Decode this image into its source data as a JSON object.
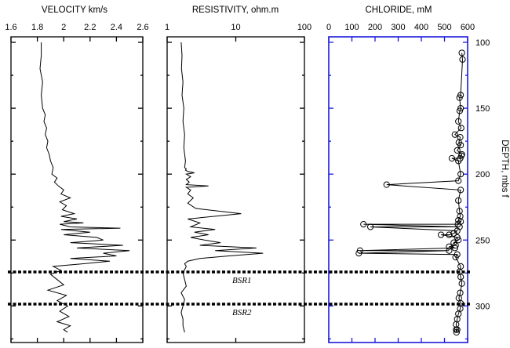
{
  "chart_data": [
    {
      "type": "line",
      "title": "VELOCITY km/s",
      "xlim": [
        1.6,
        2.6
      ],
      "xticks": [
        "1.6",
        "1.8",
        "2",
        "2.2",
        "2.4",
        "2.6"
      ],
      "ylim": [
        100,
        320
      ],
      "series": [
        {
          "x": [
            1.83,
            1.83,
            1.82,
            1.84,
            1.83,
            1.84,
            1.86,
            1.85,
            1.87,
            1.86,
            1.88,
            1.87,
            1.89,
            1.9,
            1.92,
            1.91,
            1.95,
            1.93,
            1.96,
            2.0,
            1.98,
            2.05,
            1.97,
            2.02,
            1.99,
            2.08,
            1.98,
            2.1,
            2.0,
            2.15,
            1.97,
            2.05,
            2.43,
            1.98,
            2.2,
            2.0,
            2.25,
            2.3,
            2.05,
            2.45,
            2.1,
            2.5,
            2.3,
            2.4,
            2.05,
            2.35,
            2.15,
            1.92,
            1.98,
            1.9,
            1.95,
            2.0,
            1.88,
            2.02,
            1.95,
            2.03,
            1.97,
            2.04,
            1.95,
            2.05,
            2.0,
            2.03
          ],
          "y": [
            100,
            110,
            120,
            130,
            140,
            150,
            155,
            160,
            165,
            170,
            175,
            180,
            185,
            190,
            195,
            200,
            203,
            206,
            209,
            212,
            215,
            218,
            221,
            224,
            227,
            230,
            232,
            234,
            236,
            237,
            238,
            240,
            241,
            242,
            244,
            246,
            248,
            250,
            252,
            254,
            256,
            258,
            260,
            262,
            264,
            266,
            268,
            270,
            273,
            276,
            280,
            284,
            288,
            292,
            296,
            300,
            304,
            308,
            312,
            315,
            318,
            320
          ]
        }
      ],
      "annotations": [
        "BSR1",
        "BSR2"
      ]
    },
    {
      "type": "line",
      "title": "RESISTIVITY, ohm.m",
      "xscale": "log",
      "xlim": [
        1,
        100
      ],
      "xticks": [
        "1",
        "10",
        "100"
      ],
      "ylim": [
        100,
        320
      ],
      "series": [
        {
          "x": [
            1.6,
            1.65,
            1.62,
            1.7,
            1.65,
            1.75,
            1.7,
            1.8,
            1.75,
            1.85,
            1.8,
            1.9,
            1.85,
            2.0,
            2.5,
            1.9,
            2.2,
            1.9,
            2.1,
            1.9,
            4.0,
            1.9,
            2.2,
            2.0,
            2.4,
            2.0,
            2.6,
            12.0,
            2.0,
            3.0,
            2.2,
            5.0,
            2.5,
            4.0,
            2.2,
            3.5,
            6.0,
            3.0,
            20.0,
            5.0,
            25.0,
            8.0,
            3.0,
            2.0,
            1.8,
            1.9,
            1.7,
            1.8,
            1.9,
            1.6,
            1.8,
            1.7,
            1.6,
            1.7,
            1.7,
            1.8
          ],
          "y": [
            100,
            110,
            120,
            130,
            140,
            150,
            160,
            170,
            180,
            190,
            195,
            196,
            197,
            198,
            199,
            200,
            202,
            204,
            206,
            208,
            209,
            210,
            212,
            215,
            218,
            222,
            226,
            230,
            234,
            237,
            240,
            242,
            244,
            246,
            248,
            250,
            252,
            254,
            256,
            258,
            260,
            262,
            264,
            266,
            268,
            270,
            275,
            280,
            285,
            290,
            295,
            300,
            305,
            310,
            315,
            320
          ]
        }
      ]
    },
    {
      "type": "scatter",
      "title": "CHLORIDE, mM",
      "xlim": [
        0,
        600
      ],
      "xticks": [
        "0",
        "100",
        "200",
        "300",
        "400",
        "500",
        "600"
      ],
      "ylabel": "DEPTH, mbs f",
      "ylim": [
        100,
        320
      ],
      "yticks": [
        "100",
        "150",
        "200",
        "250",
        "300"
      ],
      "series": [
        {
          "x": [
            575,
            578,
            570,
            565,
            570,
            566,
            560,
            572,
            545,
            568,
            562,
            570,
            555,
            575,
            573,
            568,
            532,
            560,
            570,
            560,
            250,
            570,
            560,
            565,
            568,
            560,
            570,
            558,
            150,
            565,
            180,
            555,
            540,
            520,
            485,
            555,
            560,
            540,
            548,
            520,
            545,
            135,
            520,
            130,
            555,
            548,
            570,
            565,
            570,
            575,
            568,
            562,
            570,
            568,
            560,
            555,
            550,
            555,
            552,
            550
          ],
          "y": [
            108,
            113,
            140,
            142,
            150,
            152,
            160,
            165,
            170,
            172,
            176,
            178,
            182,
            185,
            186,
            188,
            188,
            190,
            200,
            205,
            208,
            212,
            220,
            228,
            232,
            235,
            236,
            238,
            238,
            240,
            240,
            243,
            245,
            246,
            246,
            248,
            250,
            252,
            254,
            255,
            256,
            258,
            258,
            260,
            261,
            263,
            270,
            274,
            278,
            283,
            290,
            294,
            298,
            302,
            306,
            310,
            314,
            318,
            320,
            318
          ]
        }
      ]
    }
  ]
}
